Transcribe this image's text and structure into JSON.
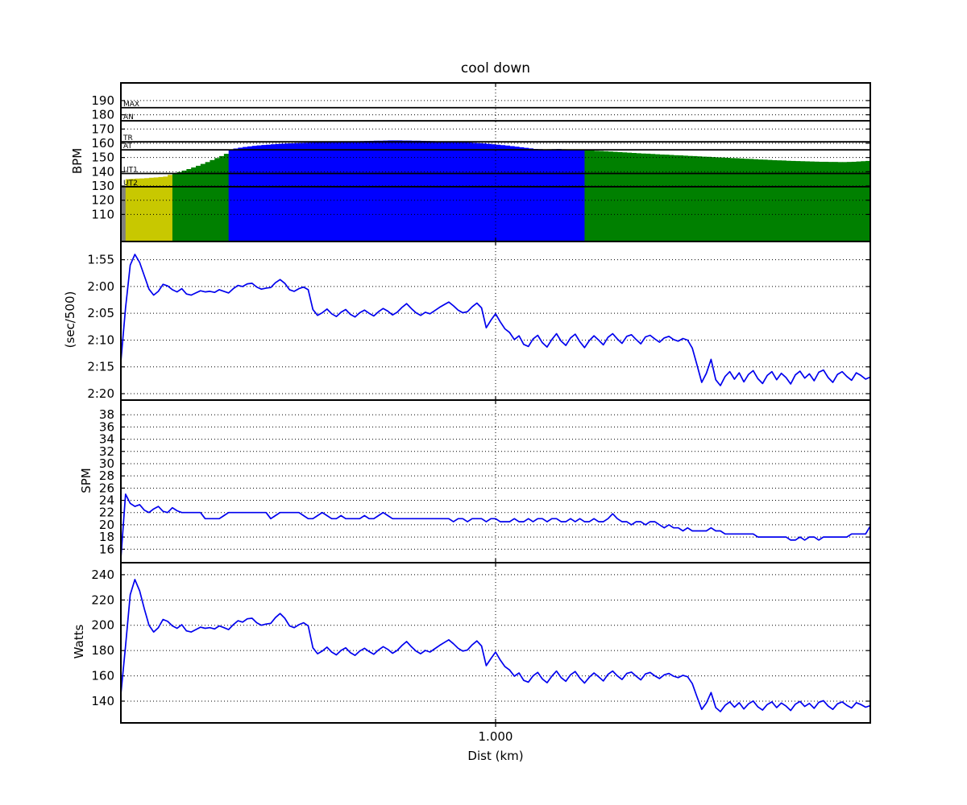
{
  "figure": {
    "title": "cool down",
    "xlabel": "Dist (km)",
    "x_range": [
      0,
      2.0
    ],
    "x_ticks": [
      {
        "value": 1.0,
        "label": "1.000"
      }
    ],
    "colors": {
      "line": "#0000ee",
      "grid": "#000000",
      "frame": "#000000",
      "text": "#000000",
      "background": "#ffffff"
    }
  },
  "panels": [
    {
      "id": "hr",
      "ylabel": "BPM",
      "type": "bars",
      "series": "hr_bpm",
      "y_range": [
        91.0,
        202.4
      ],
      "y_ticks": [
        {
          "value": 110,
          "label": "110"
        },
        {
          "value": 120,
          "label": "120"
        },
        {
          "value": 130,
          "label": "130"
        },
        {
          "value": 140,
          "label": "140"
        },
        {
          "value": 150,
          "label": "150"
        },
        {
          "value": 160,
          "label": "160"
        },
        {
          "value": 170,
          "label": "170"
        },
        {
          "value": 180,
          "label": "180"
        },
        {
          "value": 190,
          "label": "190"
        }
      ]
    },
    {
      "id": "pace",
      "ylabel": "(sec/500)",
      "type": "line",
      "series": "pace_sec_per_500m",
      "y_range": [
        141.2,
        111.6
      ],
      "y_ticks": [
        {
          "value": 115,
          "label": "1:55"
        },
        {
          "value": 120,
          "label": "2:00"
        },
        {
          "value": 125,
          "label": "2:05"
        },
        {
          "value": 130,
          "label": "2:10"
        },
        {
          "value": 135,
          "label": "2:15"
        },
        {
          "value": 140,
          "label": "2:20"
        }
      ]
    },
    {
      "id": "spm",
      "ylabel": "SPM",
      "type": "line",
      "series": "spm",
      "y_range": [
        13.8,
        40.4
      ],
      "y_ticks": [
        {
          "value": 16,
          "label": "16"
        },
        {
          "value": 18,
          "label": "18"
        },
        {
          "value": 20,
          "label": "20"
        },
        {
          "value": 22,
          "label": "22"
        },
        {
          "value": 24,
          "label": "24"
        },
        {
          "value": 26,
          "label": "26"
        },
        {
          "value": 28,
          "label": "28"
        },
        {
          "value": 30,
          "label": "30"
        },
        {
          "value": 32,
          "label": "32"
        },
        {
          "value": 34,
          "label": "34"
        },
        {
          "value": 36,
          "label": "36"
        },
        {
          "value": 38,
          "label": "38"
        }
      ]
    },
    {
      "id": "watts",
      "ylabel": "Watts",
      "type": "line",
      "series": "watts",
      "y_range": [
        122.8,
        249.5
      ],
      "y_ticks": [
        {
          "value": 140,
          "label": "140"
        },
        {
          "value": 160,
          "label": "160"
        },
        {
          "value": 180,
          "label": "180"
        },
        {
          "value": 200,
          "label": "200"
        },
        {
          "value": 220,
          "label": "220"
        },
        {
          "value": 240,
          "label": "240"
        }
      ]
    }
  ],
  "hr_zones": {
    "thresholds": {
      "ut2": 129.5,
      "ut1": 138.8,
      "at": 155.4,
      "tr": 161.0,
      "an": 175.8,
      "max": 185.0
    },
    "lines": [
      {
        "label": "MAX",
        "value": 185.0
      },
      {
        "label": "AN",
        "value": 175.8
      },
      {
        "label": "TR",
        "value": 161.0
      },
      {
        "label": "AT",
        "value": 155.4
      },
      {
        "label": "UT1",
        "value": 138.8
      },
      {
        "label": "UT2",
        "value": 129.5
      }
    ],
    "band_colors": {
      "below_ut2": "#808080",
      "ut2_ut1": "#c8c800",
      "ut1_at": "#008000",
      "at_plus": "#0000ff"
    }
  },
  "chart_data": {
    "type": "line",
    "description": "Four stacked panels sharing a distance x-axis: heart-rate zone bars (BPM), pace (sec/500m, inverted), stroke rate (SPM), power (Watts).",
    "x_axis": {
      "label": "Dist (km)",
      "start_km": 0,
      "step_km": 0.0125,
      "n_points": 161,
      "range_km": [
        0,
        2.0
      ]
    },
    "series": {
      "hr_bpm": [
        129.0,
        134.8,
        135.0,
        135.2,
        135.3,
        135.5,
        135.8,
        136.0,
        136.3,
        136.6,
        137.8,
        139.0,
        139.8,
        140.8,
        141.9,
        143.0,
        144.2,
        145.5,
        146.8,
        148.2,
        149.6,
        151.0,
        152.6,
        155.6,
        156.3,
        156.9,
        157.4,
        157.8,
        158.2,
        158.5,
        158.8,
        159.0,
        159.3,
        159.5,
        159.7,
        159.9,
        160.0,
        160.2,
        160.3,
        160.4,
        160.5,
        160.6,
        160.7,
        160.8,
        160.9,
        161.0,
        161.0,
        161.1,
        161.2,
        161.3,
        161.4,
        161.5,
        161.6,
        161.7,
        161.8,
        161.8,
        161.9,
        162.0,
        162.0,
        162.0,
        161.9,
        161.9,
        161.8,
        161.8,
        161.7,
        161.6,
        161.5,
        161.4,
        161.3,
        161.2,
        161.1,
        161.0,
        160.9,
        160.7,
        160.5,
        160.3,
        160.1,
        159.9,
        159.6,
        159.3,
        159.0,
        158.7,
        158.4,
        158.0,
        157.6,
        157.2,
        156.8,
        156.4,
        156.0,
        155.9,
        155.7,
        155.8,
        155.9,
        156.0,
        155.8,
        155.6,
        155.5,
        155.6,
        155.5,
        155.1,
        154.9,
        154.7,
        154.6,
        154.4,
        154.2,
        154.0,
        153.8,
        153.6,
        153.4,
        153.2,
        153.0,
        152.8,
        152.7,
        152.5,
        152.3,
        152.1,
        152.0,
        151.8,
        151.6,
        151.5,
        151.3,
        151.1,
        151.0,
        150.8,
        150.6,
        150.5,
        150.3,
        150.1,
        150.0,
        149.8,
        149.6,
        149.5,
        149.3,
        149.1,
        149.0,
        148.8,
        148.6,
        148.5,
        148.3,
        148.1,
        148.0,
        147.9,
        147.7,
        147.6,
        147.5,
        147.4,
        147.3,
        147.2,
        147.1,
        147.0,
        147.0,
        146.9,
        146.9,
        146.8,
        146.8,
        146.9,
        147.0,
        147.2,
        147.4,
        147.6,
        147.8
      ],
      "pace_sec_per_500m": [
        134.0,
        124.0,
        116.0,
        114.0,
        115.5,
        118.0,
        120.5,
        121.6,
        120.9,
        119.6,
        119.9,
        120.6,
        121.0,
        120.4,
        121.4,
        121.6,
        121.2,
        120.8,
        121.0,
        120.9,
        121.1,
        120.6,
        120.9,
        121.2,
        120.4,
        119.8,
        120.0,
        119.5,
        119.4,
        120.1,
        120.5,
        120.3,
        120.2,
        119.3,
        118.7,
        119.4,
        120.6,
        120.9,
        120.4,
        120.1,
        120.6,
        124.3,
        125.4,
        124.9,
        124.2,
        125.1,
        125.6,
        124.8,
        124.3,
        125.2,
        125.7,
        124.9,
        124.4,
        125.0,
        125.5,
        124.7,
        124.1,
        124.6,
        125.3,
        124.8,
        123.9,
        123.2,
        124.1,
        124.9,
        125.4,
        124.8,
        125.1,
        124.5,
        123.9,
        123.4,
        122.9,
        123.6,
        124.4,
        124.9,
        124.7,
        123.8,
        123.1,
        124.0,
        127.7,
        126.3,
        125.1,
        126.6,
        127.9,
        128.6,
        129.9,
        129.2,
        130.8,
        131.2,
        129.8,
        129.1,
        130.5,
        131.3,
        129.9,
        128.8,
        130.2,
        131.0,
        129.6,
        128.9,
        130.3,
        131.4,
        130.1,
        129.2,
        130.0,
        130.9,
        129.5,
        128.8,
        129.8,
        130.6,
        129.3,
        129.0,
        129.9,
        130.7,
        129.4,
        129.1,
        129.8,
        130.4,
        129.6,
        129.3,
        129.9,
        130.2,
        129.7,
        130.0,
        131.5,
        134.6,
        137.9,
        136.2,
        133.6,
        137.4,
        138.5,
        136.8,
        135.9,
        137.3,
        136.1,
        137.8,
        136.4,
        135.7,
        137.2,
        138.1,
        136.6,
        135.9,
        137.4,
        136.2,
        137.0,
        138.2,
        136.5,
        135.8,
        137.1,
        136.3,
        137.6,
        136.0,
        135.6,
        137.0,
        137.9,
        136.4,
        135.9,
        136.8,
        137.5,
        136.1,
        136.6,
        137.3,
        136.9
      ],
      "spm": [
        14.5,
        25.0,
        23.5,
        23.0,
        23.3,
        22.4,
        22.0,
        22.6,
        23.0,
        22.2,
        22.0,
        22.8,
        22.3,
        22.0,
        22.0,
        22.0,
        22.0,
        22.0,
        21.0,
        21.0,
        21.0,
        21.0,
        21.5,
        22.0,
        22.0,
        22.0,
        22.0,
        22.0,
        22.0,
        22.0,
        22.0,
        22.0,
        21.0,
        21.5,
        22.0,
        22.0,
        22.0,
        22.0,
        22.0,
        21.5,
        21.0,
        21.0,
        21.5,
        22.0,
        21.5,
        21.0,
        21.0,
        21.5,
        21.0,
        21.0,
        21.0,
        21.0,
        21.5,
        21.0,
        21.0,
        21.5,
        22.0,
        21.5,
        21.0,
        21.0,
        21.0,
        21.0,
        21.0,
        21.0,
        21.0,
        21.0,
        21.0,
        21.0,
        21.0,
        21.0,
        21.0,
        20.5,
        21.0,
        21.0,
        20.5,
        21.0,
        21.0,
        21.0,
        20.5,
        21.0,
        21.0,
        20.5,
        20.5,
        20.5,
        21.0,
        20.5,
        20.5,
        21.0,
        20.5,
        21.0,
        21.0,
        20.5,
        21.0,
        21.0,
        20.5,
        20.5,
        21.0,
        20.5,
        21.0,
        20.5,
        20.5,
        21.0,
        20.5,
        20.5,
        21.0,
        21.8,
        21.0,
        20.5,
        20.5,
        20.0,
        20.5,
        20.5,
        20.0,
        20.5,
        20.5,
        20.0,
        19.5,
        20.0,
        19.5,
        19.5,
        19.0,
        19.5,
        19.0,
        19.0,
        19.0,
        19.0,
        19.5,
        19.0,
        19.0,
        18.5,
        18.5,
        18.5,
        18.5,
        18.5,
        18.5,
        18.5,
        18.0,
        18.0,
        18.0,
        18.0,
        18.0,
        18.0,
        18.0,
        17.5,
        17.5,
        18.0,
        17.5,
        18.0,
        18.0,
        17.5,
        18.0,
        18.0,
        18.0,
        18.0,
        18.0,
        18.0,
        18.5,
        18.5,
        18.5,
        18.5,
        19.8
      ],
      "watts": [
        145.5,
        183.6,
        224.2,
        236.2,
        227.2,
        213.0,
        200.0,
        194.7,
        198.1,
        204.6,
        203.1,
        199.5,
        197.6,
        200.5,
        195.6,
        194.7,
        196.6,
        198.5,
        197.6,
        198.1,
        197.1,
        199.5,
        198.1,
        196.6,
        200.5,
        203.6,
        202.5,
        205.1,
        205.6,
        202.0,
        200.0,
        201.0,
        201.5,
        206.1,
        209.3,
        205.6,
        199.5,
        198.1,
        200.5,
        202.0,
        199.5,
        182.2,
        177.5,
        179.6,
        182.7,
        178.8,
        176.6,
        180.1,
        182.2,
        178.3,
        176.2,
        179.6,
        181.8,
        179.2,
        177.1,
        180.5,
        183.1,
        180.9,
        177.9,
        180.1,
        184.0,
        187.2,
        183.1,
        179.6,
        177.5,
        180.1,
        178.8,
        181.4,
        184.0,
        186.3,
        188.5,
        185.4,
        181.8,
        179.6,
        180.5,
        184.5,
        187.6,
        183.6,
        168.1,
        173.7,
        178.8,
        172.5,
        167.3,
        164.6,
        159.7,
        162.3,
        156.4,
        155.0,
        160.0,
        162.7,
        157.5,
        154.6,
        159.7,
        163.8,
        158.6,
        155.7,
        160.8,
        163.4,
        158.2,
        154.3,
        158.9,
        162.3,
        159.3,
        156.0,
        161.2,
        163.8,
        160.0,
        157.1,
        161.9,
        163.0,
        159.7,
        156.8,
        161.5,
        162.7,
        160.0,
        157.9,
        160.8,
        161.9,
        159.7,
        158.6,
        160.4,
        159.3,
        153.9,
        143.5,
        133.5,
        138.5,
        146.8,
        134.9,
        131.7,
        136.7,
        139.4,
        135.2,
        138.8,
        133.8,
        137.9,
        140.1,
        135.5,
        132.9,
        137.3,
        139.4,
        134.9,
        138.5,
        136.1,
        132.6,
        137.6,
        139.8,
        135.8,
        138.2,
        134.3,
        139.1,
        140.4,
        136.1,
        133.5,
        137.9,
        139.4,
        136.7,
        134.6,
        138.8,
        137.3,
        135.2,
        136.4
      ]
    }
  }
}
